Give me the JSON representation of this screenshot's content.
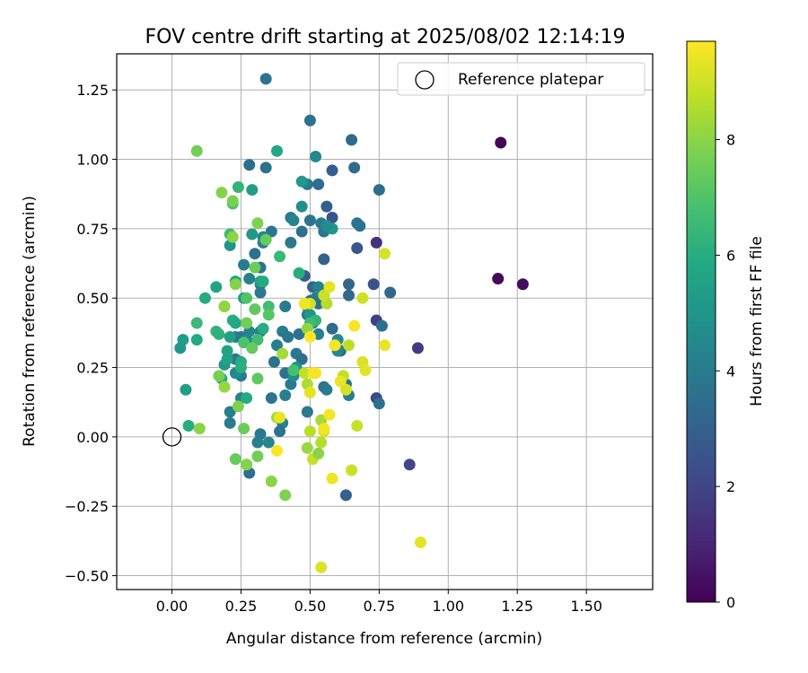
{
  "chart_data": {
    "type": "scatter",
    "title": "FOV centre drift starting at 2025/08/02 12:14:19",
    "xlabel": "Angular distance from reference (arcmin)",
    "ylabel": "Rotation from reference (arcmin)",
    "xlim": [
      -0.2,
      1.74
    ],
    "ylim": [
      -0.55,
      1.38
    ],
    "xticks": [
      0.0,
      0.25,
      0.5,
      0.75,
      1.0,
      1.25,
      1.5
    ],
    "xtick_labels": [
      "0.00",
      "0.25",
      "0.50",
      "0.75",
      "1.00",
      "1.25",
      "1.50"
    ],
    "yticks": [
      -0.5,
      -0.25,
      0.0,
      0.25,
      0.5,
      0.75,
      1.0,
      1.25
    ],
    "ytick_labels": [
      "−0.50",
      "−0.25",
      "0.00",
      "0.25",
      "0.50",
      "0.75",
      "1.00",
      "1.25"
    ],
    "grid": true,
    "legend": {
      "placement": "top-right",
      "entries": [
        {
          "label": "Reference platepar",
          "marker": "open-circle",
          "x": 0.0,
          "y": 0.0
        }
      ]
    },
    "colorbar": {
      "label": "Hours from first FF file",
      "colormap": "viridis",
      "range": [
        0,
        9.7
      ],
      "ticks": [
        0,
        2,
        4,
        6,
        8
      ],
      "tick_labels": [
        "0",
        "2",
        "4",
        "6",
        "8"
      ]
    },
    "points": [
      {
        "x": 1.19,
        "y": 1.06,
        "hours": 0.1
      },
      {
        "x": 1.18,
        "y": 0.57,
        "hours": 0.2
      },
      {
        "x": 1.27,
        "y": 0.55,
        "hours": 0.3
      },
      {
        "x": 0.89,
        "y": 0.32,
        "hours": 1.6
      },
      {
        "x": 0.86,
        "y": -0.1,
        "hours": 2.0
      },
      {
        "x": 0.74,
        "y": 0.7,
        "hours": 1.4
      },
      {
        "x": 0.74,
        "y": 0.42,
        "hours": 1.8
      },
      {
        "x": 0.74,
        "y": 0.14,
        "hours": 2.2
      },
      {
        "x": 0.73,
        "y": 0.55,
        "hours": 2.4
      },
      {
        "x": 0.67,
        "y": 0.68,
        "hours": 2.6
      },
      {
        "x": 0.63,
        "y": -0.21,
        "hours": 3.0
      },
      {
        "x": 0.58,
        "y": 0.96,
        "hours": 2.8
      },
      {
        "x": 0.58,
        "y": 0.79,
        "hours": 2.6
      },
      {
        "x": 0.56,
        "y": 0.83,
        "hours": 2.9
      },
      {
        "x": 0.61,
        "y": 0.31,
        "hours": 3.1
      },
      {
        "x": 0.65,
        "y": 1.07,
        "hours": 3.3
      },
      {
        "x": 0.66,
        "y": 0.97,
        "hours": 3.4
      },
      {
        "x": 0.75,
        "y": 0.89,
        "hours": 3.4
      },
      {
        "x": 0.79,
        "y": 0.52,
        "hours": 3.3
      },
      {
        "x": 0.76,
        "y": 0.4,
        "hours": 3.5
      },
      {
        "x": 0.75,
        "y": 0.12,
        "hours": 3.6
      },
      {
        "x": 0.64,
        "y": 0.51,
        "hours": 3.3
      },
      {
        "x": 0.64,
        "y": 0.55,
        "hours": 3.2
      },
      {
        "x": 0.67,
        "y": 0.77,
        "hours": 3.7
      },
      {
        "x": 0.68,
        "y": 0.76,
        "hours": 3.6
      },
      {
        "x": 0.58,
        "y": 0.39,
        "hours": 3.4
      },
      {
        "x": 0.59,
        "y": 0.33,
        "hours": 3.8
      },
      {
        "x": 0.5,
        "y": 1.14,
        "hours": 3.6
      },
      {
        "x": 0.34,
        "y": 1.29,
        "hours": 3.7
      },
      {
        "x": 0.28,
        "y": 0.98,
        "hours": 3.5
      },
      {
        "x": 0.34,
        "y": 0.97,
        "hours": 3.6
      },
      {
        "x": 0.52,
        "y": 1.01,
        "hours": 4.5
      },
      {
        "x": 0.49,
        "y": 0.91,
        "hours": 4.0
      },
      {
        "x": 0.53,
        "y": 0.91,
        "hours": 3.5
      },
      {
        "x": 0.5,
        "y": 0.78,
        "hours": 3.7
      },
      {
        "x": 0.54,
        "y": 0.77,
        "hours": 4.0
      },
      {
        "x": 0.55,
        "y": 0.74,
        "hours": 3.8
      },
      {
        "x": 0.47,
        "y": 0.74,
        "hours": 3.6
      },
      {
        "x": 0.43,
        "y": 0.79,
        "hours": 4.1
      },
      {
        "x": 0.44,
        "y": 0.78,
        "hours": 4.3
      },
      {
        "x": 0.43,
        "y": 0.7,
        "hours": 3.9
      },
      {
        "x": 0.36,
        "y": 0.74,
        "hours": 3.8
      },
      {
        "x": 0.33,
        "y": 0.7,
        "hours": 4.1
      },
      {
        "x": 0.33,
        "y": 0.72,
        "hours": 4.4
      },
      {
        "x": 0.3,
        "y": 0.66,
        "hours": 3.6
      },
      {
        "x": 0.26,
        "y": 0.62,
        "hours": 4.0
      },
      {
        "x": 0.32,
        "y": 0.61,
        "hours": 3.8
      },
      {
        "x": 0.32,
        "y": 0.55,
        "hours": 3.7
      },
      {
        "x": 0.28,
        "y": 0.57,
        "hours": 4.2
      },
      {
        "x": 0.32,
        "y": 0.52,
        "hours": 3.9
      },
      {
        "x": 0.48,
        "y": 0.58,
        "hours": 2.8
      },
      {
        "x": 0.51,
        "y": 0.54,
        "hours": 3.2
      },
      {
        "x": 0.55,
        "y": 0.64,
        "hours": 3.0
      },
      {
        "x": 0.53,
        "y": 0.54,
        "hours": 4.3
      },
      {
        "x": 0.52,
        "y": 0.5,
        "hours": 4.1
      },
      {
        "x": 0.5,
        "y": 0.49,
        "hours": 3.7
      },
      {
        "x": 0.53,
        "y": 0.48,
        "hours": 3.6
      },
      {
        "x": 0.49,
        "y": 0.44,
        "hours": 4.0
      },
      {
        "x": 0.51,
        "y": 0.41,
        "hours": 3.5
      },
      {
        "x": 0.53,
        "y": 0.37,
        "hours": 4.2
      },
      {
        "x": 0.46,
        "y": 0.37,
        "hours": 3.6
      },
      {
        "x": 0.41,
        "y": 0.47,
        "hours": 3.9
      },
      {
        "x": 0.4,
        "y": 0.38,
        "hours": 4.0
      },
      {
        "x": 0.42,
        "y": 0.36,
        "hours": 3.8
      },
      {
        "x": 0.38,
        "y": 0.33,
        "hours": 4.1
      },
      {
        "x": 0.37,
        "y": 0.27,
        "hours": 3.7
      },
      {
        "x": 0.45,
        "y": 0.3,
        "hours": 3.9
      },
      {
        "x": 0.47,
        "y": 0.28,
        "hours": 3.5
      },
      {
        "x": 0.41,
        "y": 0.23,
        "hours": 3.6
      },
      {
        "x": 0.43,
        "y": 0.19,
        "hours": 4.0
      },
      {
        "x": 0.36,
        "y": 0.14,
        "hours": 3.8
      },
      {
        "x": 0.41,
        "y": 0.15,
        "hours": 4.2
      },
      {
        "x": 0.32,
        "y": 0.38,
        "hours": 4.3
      },
      {
        "x": 0.28,
        "y": 0.38,
        "hours": 4.4
      },
      {
        "x": 0.23,
        "y": 0.36,
        "hours": 4.2
      },
      {
        "x": 0.25,
        "y": 0.36,
        "hours": 3.8
      },
      {
        "x": 0.27,
        "y": 0.35,
        "hours": 4.5
      },
      {
        "x": 0.23,
        "y": 0.28,
        "hours": 3.9
      },
      {
        "x": 0.25,
        "y": 0.22,
        "hours": 4.0
      },
      {
        "x": 0.23,
        "y": 0.23,
        "hours": 4.6
      },
      {
        "x": 0.25,
        "y": 0.14,
        "hours": 4.3
      },
      {
        "x": 0.21,
        "y": 0.09,
        "hours": 4.2
      },
      {
        "x": 0.21,
        "y": 0.05,
        "hours": 4.0
      },
      {
        "x": 0.32,
        "y": 0.01,
        "hours": 3.9
      },
      {
        "x": 0.31,
        "y": -0.02,
        "hours": 4.1
      },
      {
        "x": 0.27,
        "y": -0.1,
        "hours": 3.8
      },
      {
        "x": 0.28,
        "y": -0.13,
        "hours": 3.5
      },
      {
        "x": 0.35,
        "y": -0.02,
        "hours": 4.4
      },
      {
        "x": 0.4,
        "y": 0.05,
        "hours": 4.3
      },
      {
        "x": 0.39,
        "y": 0.02,
        "hours": 3.7
      },
      {
        "x": 0.49,
        "y": 0.09,
        "hours": 3.9
      },
      {
        "x": 0.55,
        "y": 0.18,
        "hours": 3.8
      },
      {
        "x": 0.56,
        "y": 0.17,
        "hours": 4.0
      },
      {
        "x": 0.63,
        "y": 0.19,
        "hours": 3.7
      },
      {
        "x": 0.64,
        "y": 0.15,
        "hours": 4.1
      },
      {
        "x": 0.6,
        "y": 0.35,
        "hours": 4.6
      },
      {
        "x": 0.6,
        "y": 0.31,
        "hours": 4.5
      },
      {
        "x": 0.58,
        "y": 0.75,
        "hours": 5.0
      },
      {
        "x": 0.56,
        "y": 0.76,
        "hours": 4.7
      },
      {
        "x": 0.47,
        "y": 0.83,
        "hours": 4.8
      },
      {
        "x": 0.49,
        "y": 0.47,
        "hours": 4.9
      },
      {
        "x": 0.5,
        "y": 0.44,
        "hours": 5.0
      },
      {
        "x": 0.45,
        "y": 0.25,
        "hours": 5.0
      },
      {
        "x": 0.44,
        "y": 0.22,
        "hours": 4.7
      },
      {
        "x": 0.47,
        "y": 0.92,
        "hours": 5.2
      },
      {
        "x": 0.29,
        "y": 0.89,
        "hours": 5.4
      },
      {
        "x": 0.21,
        "y": 0.69,
        "hours": 5.0
      },
      {
        "x": 0.29,
        "y": 0.73,
        "hours": 5.2
      },
      {
        "x": 0.32,
        "y": 0.56,
        "hours": 5.5
      },
      {
        "x": 0.26,
        "y": 0.5,
        "hours": 5.3
      },
      {
        "x": 0.23,
        "y": 0.56,
        "hours": 5.6
      },
      {
        "x": 0.16,
        "y": 0.54,
        "hours": 5.7
      },
      {
        "x": 0.12,
        "y": 0.5,
        "hours": 5.9
      },
      {
        "x": 0.05,
        "y": 0.17,
        "hours": 5.4
      },
      {
        "x": 0.03,
        "y": 0.32,
        "hours": 5.2
      },
      {
        "x": 0.04,
        "y": 0.35,
        "hours": 5.3
      },
      {
        "x": 0.09,
        "y": 0.35,
        "hours": 5.8
      },
      {
        "x": 0.2,
        "y": 0.31,
        "hours": 5.6
      },
      {
        "x": 0.19,
        "y": 0.26,
        "hours": 5.1
      },
      {
        "x": 0.2,
        "y": 0.28,
        "hours": 5.7
      },
      {
        "x": 0.27,
        "y": 0.14,
        "hours": 5.9
      },
      {
        "x": 0.25,
        "y": 0.27,
        "hours": 6.0
      },
      {
        "x": 0.25,
        "y": 0.25,
        "hours": 6.1
      },
      {
        "x": 0.21,
        "y": 0.36,
        "hours": 5.5
      },
      {
        "x": 0.22,
        "y": 0.42,
        "hours": 6.0
      },
      {
        "x": 0.23,
        "y": 0.41,
        "hours": 5.8
      },
      {
        "x": 0.16,
        "y": 0.38,
        "hours": 6.3
      },
      {
        "x": 0.18,
        "y": 0.21,
        "hours": 6.1
      },
      {
        "x": 0.17,
        "y": 0.37,
        "hours": 6.2
      },
      {
        "x": 0.09,
        "y": 0.41,
        "hours": 6.5
      },
      {
        "x": 0.06,
        "y": 0.04,
        "hours": 6.0
      },
      {
        "x": 0.19,
        "y": 0.47,
        "hours": 6.4
      },
      {
        "x": 0.21,
        "y": 0.73,
        "hours": 6.6
      },
      {
        "x": 0.24,
        "y": 0.9,
        "hours": 6.3
      },
      {
        "x": 0.22,
        "y": 0.84,
        "hours": 6.9
      },
      {
        "x": 0.38,
        "y": 1.03,
        "hours": 5.8
      },
      {
        "x": 0.39,
        "y": 0.65,
        "hours": 6.5
      },
      {
        "x": 0.46,
        "y": 0.59,
        "hours": 6.0
      },
      {
        "x": 0.33,
        "y": 0.56,
        "hours": 5.9
      },
      {
        "x": 0.35,
        "y": 0.47,
        "hours": 6.7
      },
      {
        "x": 0.27,
        "y": 0.5,
        "hours": 7.0
      },
      {
        "x": 0.3,
        "y": 0.46,
        "hours": 7.3
      },
      {
        "x": 0.35,
        "y": 0.44,
        "hours": 7.1
      },
      {
        "x": 0.52,
        "y": 0.42,
        "hours": 6.3
      },
      {
        "x": 0.5,
        "y": 0.41,
        "hours": 6.6
      },
      {
        "x": 0.33,
        "y": 0.39,
        "hours": 6.0
      },
      {
        "x": 0.31,
        "y": 0.35,
        "hours": 6.7
      },
      {
        "x": 0.26,
        "y": 0.34,
        "hours": 6.9
      },
      {
        "x": 0.29,
        "y": 0.32,
        "hours": 7.4
      },
      {
        "x": 0.44,
        "y": 0.24,
        "hours": 6.8
      },
      {
        "x": 0.31,
        "y": 0.21,
        "hours": 7.3
      },
      {
        "x": 0.27,
        "y": 0.41,
        "hours": 7.6
      },
      {
        "x": 0.3,
        "y": 0.61,
        "hours": 7.5
      },
      {
        "x": 0.34,
        "y": 0.71,
        "hours": 7.4
      },
      {
        "x": 0.31,
        "y": 0.77,
        "hours": 7.8
      },
      {
        "x": 0.22,
        "y": 0.85,
        "hours": 7.7
      },
      {
        "x": 0.18,
        "y": 0.88,
        "hours": 7.9
      },
      {
        "x": 0.09,
        "y": 1.03,
        "hours": 7.6
      },
      {
        "x": 0.22,
        "y": 0.72,
        "hours": 8.0
      },
      {
        "x": 0.23,
        "y": 0.55,
        "hours": 7.9
      },
      {
        "x": 0.19,
        "y": 0.47,
        "hours": 8.1
      },
      {
        "x": 0.17,
        "y": 0.22,
        "hours": 7.7
      },
      {
        "x": 0.19,
        "y": 0.18,
        "hours": 8.2
      },
      {
        "x": 0.24,
        "y": 0.11,
        "hours": 7.8
      },
      {
        "x": 0.26,
        "y": 0.03,
        "hours": 7.5
      },
      {
        "x": 0.1,
        "y": 0.03,
        "hours": 8.0
      },
      {
        "x": 0.23,
        "y": -0.08,
        "hours": 7.4
      },
      {
        "x": 0.27,
        "y": -0.1,
        "hours": 7.9
      },
      {
        "x": 0.31,
        "y": -0.07,
        "hours": 7.6
      },
      {
        "x": 0.36,
        "y": -0.16,
        "hours": 8.0
      },
      {
        "x": 0.41,
        "y": -0.21,
        "hours": 7.8
      },
      {
        "x": 0.4,
        "y": 0.3,
        "hours": 8.4
      },
      {
        "x": 0.38,
        "y": 0.07,
        "hours": 8.3
      },
      {
        "x": 0.48,
        "y": 0.48,
        "hours": 8.5
      },
      {
        "x": 0.49,
        "y": 0.39,
        "hours": 8.1
      },
      {
        "x": 0.49,
        "y": 0.19,
        "hours": 8.5
      },
      {
        "x": 0.48,
        "y": 0.23,
        "hours": 8.8
      },
      {
        "x": 0.5,
        "y": 0.02,
        "hours": 8.7
      },
      {
        "x": 0.49,
        "y": -0.04,
        "hours": 8.2
      },
      {
        "x": 0.51,
        "y": -0.08,
        "hours": 8.9
      },
      {
        "x": 0.54,
        "y": 0.06,
        "hours": 8.4
      },
      {
        "x": 0.54,
        "y": -0.02,
        "hours": 8.6
      },
      {
        "x": 0.53,
        "y": -0.06,
        "hours": 8.0
      },
      {
        "x": 0.55,
        "y": 0.02,
        "hours": 9.2
      },
      {
        "x": 0.56,
        "y": 0.48,
        "hours": 8.6
      },
      {
        "x": 0.55,
        "y": 0.51,
        "hours": 8.9
      },
      {
        "x": 0.57,
        "y": 0.54,
        "hours": 9.3
      },
      {
        "x": 0.58,
        "y": -0.15,
        "hours": 9.5
      },
      {
        "x": 0.64,
        "y": 0.33,
        "hours": 8.7
      },
      {
        "x": 0.63,
        "y": 0.17,
        "hours": 9.1
      },
      {
        "x": 0.62,
        "y": 0.22,
        "hours": 8.8
      },
      {
        "x": 0.61,
        "y": 0.2,
        "hours": 9.4
      },
      {
        "x": 0.65,
        "y": -0.12,
        "hours": 8.9
      },
      {
        "x": 0.66,
        "y": 0.4,
        "hours": 9.6
      },
      {
        "x": 0.69,
        "y": 0.5,
        "hours": 9.0
      },
      {
        "x": 0.69,
        "y": 0.27,
        "hours": 9.2
      },
      {
        "x": 0.7,
        "y": 0.24,
        "hours": 9.3
      },
      {
        "x": 0.67,
        "y": 0.04,
        "hours": 8.9
      },
      {
        "x": 0.77,
        "y": 0.66,
        "hours": 9.1
      },
      {
        "x": 0.77,
        "y": 0.33,
        "hours": 9.4
      },
      {
        "x": 0.9,
        "y": -0.38,
        "hours": 9.3
      },
      {
        "x": 0.54,
        "y": -0.47,
        "hours": 9.2
      },
      {
        "x": 0.5,
        "y": 0.36,
        "hours": 9.7
      },
      {
        "x": 0.51,
        "y": 0.23,
        "hours": 9.5
      },
      {
        "x": 0.52,
        "y": 0.23,
        "hours": 9.6
      },
      {
        "x": 0.5,
        "y": 0.16,
        "hours": 9.3
      },
      {
        "x": 0.55,
        "y": 0.03,
        "hours": 9.5
      },
      {
        "x": 0.57,
        "y": 0.08,
        "hours": 9.6
      },
      {
        "x": 0.38,
        "y": -0.05,
        "hours": 9.7
      },
      {
        "x": 0.39,
        "y": 0.07,
        "hours": 9.4
      },
      {
        "x": 0.5,
        "y": 0.48,
        "hours": 9.0
      },
      {
        "x": 0.48,
        "y": 0.48,
        "hours": 9.5
      },
      {
        "x": 0.59,
        "y": 0.33,
        "hours": 9.6
      }
    ]
  }
}
